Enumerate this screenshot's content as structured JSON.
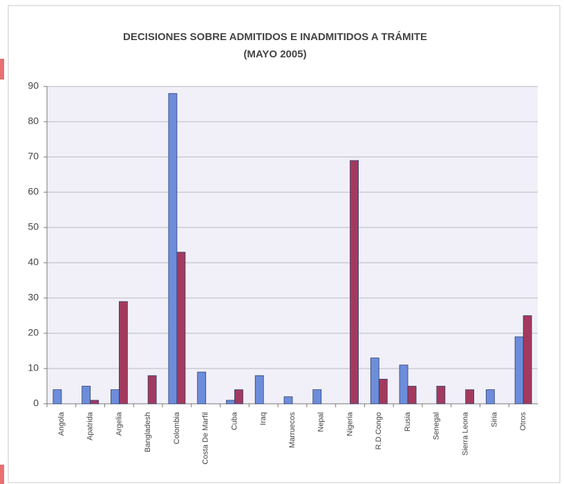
{
  "chart_data": {
    "type": "bar",
    "title": "DECISIONES SOBRE ADMITIDOS E INADMITIDOS A TRÁMITE",
    "subtitle": "(MAYO 2005)",
    "categories": [
      "Angola",
      "Apatrida",
      "Argelia",
      "Bangladesh",
      "Colombia",
      "Costa De Marfil",
      "Cuba",
      "Iraq",
      "Marruecos",
      "Nepal",
      "Nigeria",
      "R.D.Congo",
      "Rusia",
      "Senegal",
      "Sierra Leona",
      "Siria",
      "Otros"
    ],
    "series": [
      {
        "color": "#6d8ddb",
        "values": [
          4,
          5,
          4,
          0,
          88,
          9,
          1,
          8,
          2,
          4,
          0,
          13,
          11,
          0,
          0,
          4,
          19
        ]
      },
      {
        "color": "#a33a5e",
        "values": [
          0,
          1,
          29,
          8,
          43,
          0,
          4,
          0,
          0,
          0,
          69,
          7,
          5,
          5,
          4,
          0,
          25
        ]
      }
    ],
    "ylim": [
      0,
      90
    ],
    "yticks": [
      0,
      10,
      20,
      30,
      40,
      50,
      60,
      70,
      80,
      90
    ],
    "grid": true
  }
}
